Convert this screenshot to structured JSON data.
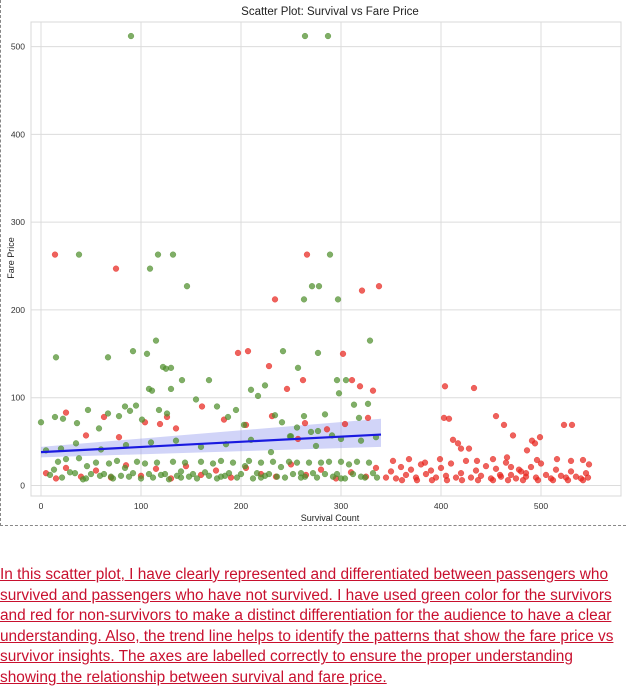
{
  "chart_data": {
    "type": "scatter",
    "title": "Scatter Plot: Survival vs Fare Price",
    "xlabel": "Survival Count",
    "ylabel": "Fare Price",
    "xlim": [
      -10,
      580
    ],
    "ylim": [
      -12,
      528
    ],
    "xticks": [
      0,
      100,
      200,
      300,
      400,
      500
    ],
    "yticks": [
      0,
      100,
      200,
      300,
      400,
      500
    ],
    "grid": true,
    "colors": {
      "survived": "#4f8f2c",
      "not_survived": "#e8261e",
      "trend": "#1a1ae0",
      "band": "#9aa0f0"
    },
    "trend_line": {
      "x": [
        0,
        340
      ],
      "y": [
        38,
        58
      ]
    },
    "series": [
      {
        "key": "survived",
        "points": [
          [
            90,
            512
          ],
          [
            264,
            512
          ],
          [
            287,
            512
          ],
          [
            38,
            263
          ],
          [
            117,
            263
          ],
          [
            132,
            263
          ],
          [
            289,
            263
          ],
          [
            109,
            247
          ],
          [
            146,
            227
          ],
          [
            271,
            227
          ],
          [
            278,
            227
          ],
          [
            263,
            212
          ],
          [
            297,
            212
          ],
          [
            15,
            146
          ],
          [
            67,
            146
          ],
          [
            92,
            153
          ],
          [
            115,
            165
          ],
          [
            122,
            135
          ],
          [
            125,
            133
          ],
          [
            130,
            134
          ],
          [
            106,
            150
          ],
          [
            242,
            153
          ],
          [
            257,
            134
          ],
          [
            277,
            151
          ],
          [
            296,
            120
          ],
          [
            329,
            165
          ],
          [
            14,
            78
          ],
          [
            22,
            76
          ],
          [
            36,
            71
          ],
          [
            47,
            86
          ],
          [
            58,
            65
          ],
          [
            67,
            82
          ],
          [
            78,
            79
          ],
          [
            84,
            90
          ],
          [
            89,
            85
          ],
          [
            95,
            91
          ],
          [
            101,
            75
          ],
          [
            108,
            110
          ],
          [
            111,
            108
          ],
          [
            118,
            86
          ],
          [
            126,
            82
          ],
          [
            130,
            110
          ],
          [
            141,
            120
          ],
          [
            155,
            98
          ],
          [
            168,
            120
          ],
          [
            176,
            90
          ],
          [
            187,
            78
          ],
          [
            195,
            86
          ],
          [
            203,
            69
          ],
          [
            210,
            109
          ],
          [
            217,
            102
          ],
          [
            224,
            114
          ],
          [
            234,
            80
          ],
          [
            241,
            72
          ],
          [
            249,
            56
          ],
          [
            256,
            66
          ],
          [
            263,
            79
          ],
          [
            270,
            61
          ],
          [
            277,
            62
          ],
          [
            284,
            81
          ],
          [
            291,
            57
          ],
          [
            298,
            105
          ],
          [
            305,
            120
          ],
          [
            313,
            92
          ],
          [
            318,
            77
          ],
          [
            327,
            93
          ],
          [
            335,
            55
          ],
          [
            0,
            72
          ],
          [
            9,
            12
          ],
          [
            13,
            18
          ],
          [
            17,
            27
          ],
          [
            21,
            9
          ],
          [
            25,
            30
          ],
          [
            29,
            15
          ],
          [
            34,
            14
          ],
          [
            38,
            31
          ],
          [
            42,
            7
          ],
          [
            46,
            22
          ],
          [
            50,
            13
          ],
          [
            55,
            26
          ],
          [
            59,
            11
          ],
          [
            63,
            13
          ],
          [
            68,
            25
          ],
          [
            72,
            8
          ],
          [
            76,
            28
          ],
          [
            80,
            11
          ],
          [
            84,
            20
          ],
          [
            88,
            10
          ],
          [
            92,
            14
          ],
          [
            96,
            27
          ],
          [
            100,
            8
          ],
          [
            104,
            25
          ],
          [
            108,
            13
          ],
          [
            112,
            9
          ],
          [
            116,
            26
          ],
          [
            120,
            12
          ],
          [
            124,
            13
          ],
          [
            128,
            7
          ],
          [
            132,
            27
          ],
          [
            136,
            11
          ],
          [
            140,
            16
          ],
          [
            144,
            26
          ],
          [
            148,
            10
          ],
          [
            152,
            13
          ],
          [
            156,
            8
          ],
          [
            160,
            27
          ],
          [
            164,
            15
          ],
          [
            168,
            11
          ],
          [
            172,
            25
          ],
          [
            176,
            8
          ],
          [
            180,
            28
          ],
          [
            184,
            11
          ],
          [
            188,
            14
          ],
          [
            192,
            26
          ],
          [
            196,
            9
          ],
          [
            200,
            13
          ],
          [
            204,
            22
          ],
          [
            208,
            28
          ],
          [
            212,
            8
          ],
          [
            216,
            14
          ],
          [
            220,
            26
          ],
          [
            224,
            11
          ],
          [
            228,
            13
          ],
          [
            232,
            27
          ],
          [
            236,
            10
          ],
          [
            240,
            21
          ],
          [
            244,
            9
          ],
          [
            248,
            27
          ],
          [
            252,
            13
          ],
          [
            256,
            26
          ],
          [
            260,
            14
          ],
          [
            264,
            10
          ],
          [
            268,
            26
          ],
          [
            272,
            14
          ],
          [
            276,
            9
          ],
          [
            280,
            26
          ],
          [
            284,
            13
          ],
          [
            288,
            27
          ],
          [
            292,
            10
          ],
          [
            296,
            13
          ],
          [
            300,
            27
          ],
          [
            304,
            8
          ],
          [
            308,
            24
          ],
          [
            312,
            13
          ],
          [
            316,
            27
          ],
          [
            320,
            10
          ],
          [
            324,
            9
          ],
          [
            328,
            26
          ],
          [
            332,
            14
          ],
          [
            336,
            9
          ],
          [
            5,
            40
          ],
          [
            20,
            42
          ],
          [
            35,
            48
          ],
          [
            60,
            41
          ],
          [
            85,
            46
          ],
          [
            110,
            49
          ],
          [
            135,
            51
          ],
          [
            160,
            44
          ],
          [
            185,
            47
          ],
          [
            210,
            52
          ],
          [
            230,
            38
          ],
          [
            250,
            56
          ],
          [
            275,
            45
          ],
          [
            300,
            53
          ],
          [
            320,
            51
          ],
          [
            45,
            8
          ],
          [
            70,
            10
          ],
          [
            140,
            9
          ],
          [
            180,
            10
          ],
          [
            220,
            9
          ],
          [
            260,
            9
          ],
          [
            300,
            8
          ]
        ]
      },
      {
        "key": "not_survived",
        "points": [
          [
            14,
            263
          ],
          [
            75,
            247
          ],
          [
            266,
            263
          ],
          [
            234,
            212
          ],
          [
            321,
            222
          ],
          [
            338,
            227
          ],
          [
            197,
            151
          ],
          [
            207,
            153
          ],
          [
            228,
            136
          ],
          [
            246,
            110
          ],
          [
            262,
            120
          ],
          [
            302,
            150
          ],
          [
            311,
            120
          ],
          [
            319,
            113
          ],
          [
            332,
            108
          ],
          [
            404,
            113
          ],
          [
            433,
            111
          ],
          [
            25,
            83
          ],
          [
            45,
            57
          ],
          [
            63,
            78
          ],
          [
            78,
            55
          ],
          [
            104,
            72
          ],
          [
            119,
            70
          ],
          [
            126,
            78
          ],
          [
            135,
            65
          ],
          [
            161,
            90
          ],
          [
            183,
            75
          ],
          [
            205,
            69
          ],
          [
            231,
            79
          ],
          [
            257,
            53
          ],
          [
            264,
            71
          ],
          [
            286,
            64
          ],
          [
            304,
            70
          ],
          [
            327,
            77
          ],
          [
            403,
            77
          ],
          [
            408,
            76
          ],
          [
            412,
            52
          ],
          [
            417,
            48
          ],
          [
            420,
            42
          ],
          [
            428,
            42
          ],
          [
            455,
            79
          ],
          [
            463,
            69
          ],
          [
            472,
            57
          ],
          [
            486,
            40
          ],
          [
            491,
            51
          ],
          [
            494,
            48
          ],
          [
            499,
            55
          ],
          [
            523,
            69
          ],
          [
            531,
            69
          ],
          [
            542,
            29
          ],
          [
            530,
            28
          ],
          [
            459,
            12
          ],
          [
            470,
            21
          ],
          [
            452,
            30
          ],
          [
            478,
            18
          ],
          [
            485,
            14
          ],
          [
            5,
            14
          ],
          [
            15,
            8
          ],
          [
            25,
            20
          ],
          [
            40,
            10
          ],
          [
            55,
            17
          ],
          [
            70,
            9
          ],
          [
            85,
            23
          ],
          [
            100,
            11
          ],
          [
            115,
            19
          ],
          [
            130,
            8
          ],
          [
            145,
            22
          ],
          [
            160,
            12
          ],
          [
            175,
            17
          ],
          [
            190,
            9
          ],
          [
            205,
            20
          ],
          [
            220,
            13
          ],
          [
            235,
            10
          ],
          [
            250,
            24
          ],
          [
            265,
            12
          ],
          [
            280,
            18
          ],
          [
            295,
            8
          ],
          [
            310,
            15
          ],
          [
            325,
            10
          ],
          [
            335,
            20
          ],
          [
            345,
            9
          ],
          [
            350,
            16
          ],
          [
            355,
            8
          ],
          [
            360,
            21
          ],
          [
            365,
            12
          ],
          [
            370,
            18
          ],
          [
            375,
            9
          ],
          [
            380,
            24
          ],
          [
            385,
            13
          ],
          [
            390,
            17
          ],
          [
            395,
            9
          ],
          [
            400,
            20
          ],
          [
            405,
            11
          ],
          [
            410,
            25
          ],
          [
            415,
            9
          ],
          [
            420,
            14
          ],
          [
            425,
            28
          ],
          [
            430,
            9
          ],
          [
            435,
            17
          ],
          [
            440,
            11
          ],
          [
            445,
            22
          ],
          [
            450,
            8
          ],
          [
            455,
            19
          ],
          [
            460,
            10
          ],
          [
            465,
            26
          ],
          [
            470,
            12
          ],
          [
            475,
            8
          ],
          [
            480,
            16
          ],
          [
            485,
            10
          ],
          [
            490,
            21
          ],
          [
            495,
            9
          ],
          [
            500,
            25
          ],
          [
            505,
            12
          ],
          [
            510,
            8
          ],
          [
            515,
            18
          ],
          [
            520,
            11
          ],
          [
            525,
            9
          ],
          [
            530,
            16
          ],
          [
            535,
            10
          ],
          [
            540,
            8
          ],
          [
            545,
            14
          ],
          [
            548,
            24
          ],
          [
            547,
            9
          ],
          [
            352,
            28
          ],
          [
            368,
            30
          ],
          [
            384,
            26
          ],
          [
            399,
            30
          ],
          [
            436,
            28
          ],
          [
            466,
            32
          ],
          [
            496,
            29
          ],
          [
            516,
            30
          ],
          [
            361,
            6
          ],
          [
            376,
            6
          ],
          [
            391,
            6
          ],
          [
            406,
            6
          ],
          [
            421,
            6
          ],
          [
            437,
            6
          ],
          [
            452,
            6
          ],
          [
            467,
            6
          ],
          [
            482,
            6
          ],
          [
            497,
            6
          ],
          [
            512,
            6
          ],
          [
            527,
            6
          ],
          [
            542,
            6
          ]
        ]
      }
    ]
  },
  "caption": {
    "part1": "In this scatter plot, I have clearly represented and differentiated between passengers who survived and passengers who have not survived. I have used ",
    "part2": "green color",
    "part3": " for the survivors and red for non-survivors to make a distinct differentiation for the audience to have a clear understanding. Also, the trend line helps to identify the patterns that show the fare price vs survivor insights. The axes are labelled correctly to ensure the proper understanding showing the relationship between survival and fare price."
  }
}
